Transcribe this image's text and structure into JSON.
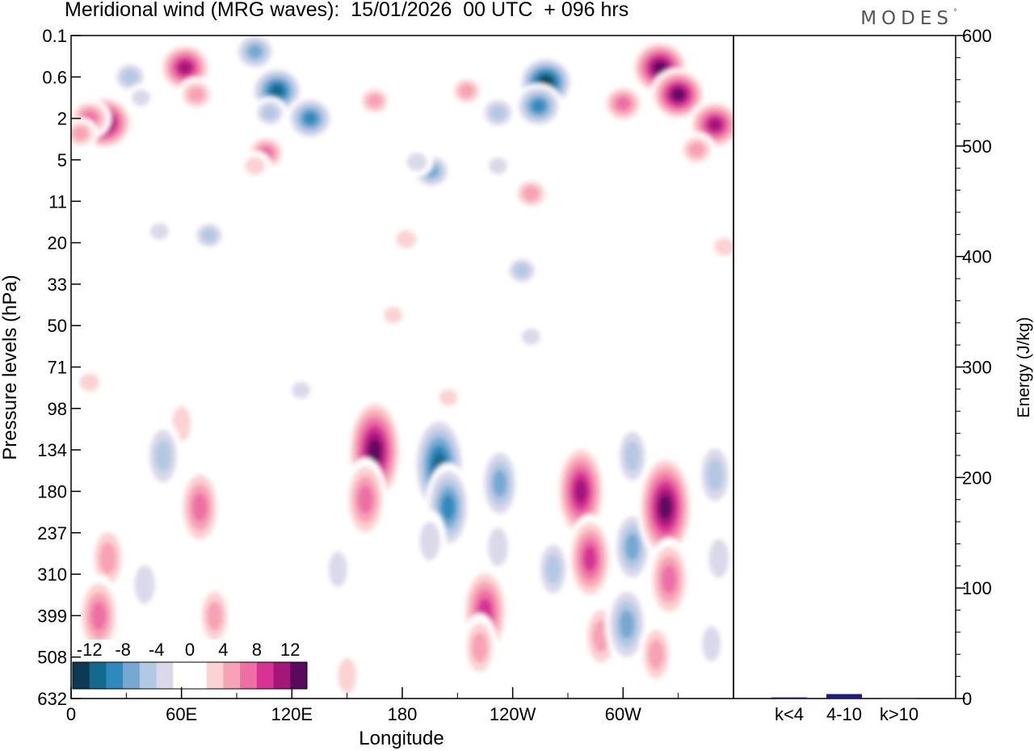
{
  "header": {
    "title": "Meridional wind (MRG waves):  15/01/2026  00 UTC  + 096 hrs",
    "brand": "MODES",
    "brand_mark": "°"
  },
  "chart_data": [
    {
      "type": "heatmap",
      "title": "Meridional wind (MRG waves):  15/01/2026  00 UTC  + 096 hrs",
      "xlabel": "Longitude",
      "ylabel": "Pressure levels (hPa)",
      "x_ticks": [
        "0",
        "60E",
        "120E",
        "180",
        "120W",
        "60W"
      ],
      "x_tick_values": [
        0,
        60,
        120,
        180,
        240,
        300
      ],
      "x_range": [
        0,
        360
      ],
      "y_ticks": [
        "0.1",
        "0.6",
        "2",
        "5",
        "11",
        "20",
        "33",
        "50",
        "71",
        "98",
        "134",
        "180",
        "237",
        "310",
        "399",
        "508",
        "632"
      ],
      "colorbar": {
        "labels": [
          "-12",
          "-8",
          "-4",
          "0",
          "4",
          "8",
          "12"
        ],
        "colors": [
          "#0b3a52",
          "#126b8c",
          "#2e89bd",
          "#76a9d2",
          "#b3c9e3",
          "#dad9ea",
          "#ffffff",
          "#ffffff",
          "#fdd2d3",
          "#f7a2b6",
          "#ed6fa4",
          "#d63393",
          "#a3167a",
          "#5a0a5e"
        ]
      },
      "cells": [
        {
          "lon": 18,
          "level": 2.2,
          "value": 14
        },
        {
          "lon": 10,
          "level": 2.0,
          "value": 8
        },
        {
          "lon": 5,
          "level": 2.8,
          "value": 5
        },
        {
          "lon": 32,
          "level": 0.6,
          "value": -6
        },
        {
          "lon": 38,
          "level": 1.1,
          "value": -3
        },
        {
          "lon": 62,
          "level": 0.4,
          "value": 12
        },
        {
          "lon": 68,
          "level": 1.0,
          "value": 6
        },
        {
          "lon": 100,
          "level": 0.2,
          "value": -8
        },
        {
          "lon": 112,
          "level": 0.9,
          "value": -12
        },
        {
          "lon": 130,
          "level": 2.0,
          "value": -10
        },
        {
          "lon": 108,
          "level": 1.7,
          "value": -5
        },
        {
          "lon": 165,
          "level": 1.2,
          "value": 5
        },
        {
          "lon": 106,
          "level": 4.3,
          "value": 7
        },
        {
          "lon": 100,
          "level": 5.6,
          "value": 4
        },
        {
          "lon": 215,
          "level": 0.9,
          "value": 5
        },
        {
          "lon": 196,
          "level": 6.2,
          "value": -7
        },
        {
          "lon": 188,
          "level": 5.2,
          "value": -4
        },
        {
          "lon": 258,
          "level": 0.7,
          "value": -13
        },
        {
          "lon": 254,
          "level": 1.4,
          "value": -10
        },
        {
          "lon": 232,
          "level": 1.7,
          "value": -6
        },
        {
          "lon": 250,
          "level": 9.5,
          "value": 6
        },
        {
          "lon": 232,
          "level": 5.6,
          "value": -3
        },
        {
          "lon": 320,
          "level": 0.4,
          "value": 14
        },
        {
          "lon": 330,
          "level": 1.0,
          "value": 13
        },
        {
          "lon": 300,
          "level": 1.3,
          "value": 8
        },
        {
          "lon": 350,
          "level": 2.3,
          "value": 12
        },
        {
          "lon": 340,
          "level": 4.0,
          "value": 6
        },
        {
          "lon": 75,
          "level": 18,
          "value": -5
        },
        {
          "lon": 48,
          "level": 17,
          "value": -3
        },
        {
          "lon": 182,
          "level": 19,
          "value": 4
        },
        {
          "lon": 245,
          "level": 28,
          "value": -5
        },
        {
          "lon": 355,
          "level": 21,
          "value": 4
        },
        {
          "lon": 175,
          "level": 45,
          "value": 3
        },
        {
          "lon": 250,
          "level": 55,
          "value": -3
        },
        {
          "lon": 300,
          "level": 55,
          "value": 2
        },
        {
          "lon": 10,
          "level": 80,
          "value": 4
        },
        {
          "lon": 125,
          "level": 85,
          "value": -3
        },
        {
          "lon": 205,
          "level": 90,
          "value": 3
        },
        {
          "lon": 60,
          "level": 110,
          "value": 3
        },
        {
          "lon": 70,
          "level": 200,
          "value": 8
        },
        {
          "lon": 78,
          "level": 400,
          "value": 5
        },
        {
          "lon": 20,
          "level": 280,
          "value": 6
        },
        {
          "lon": 15,
          "level": 400,
          "value": 8
        },
        {
          "lon": 50,
          "level": 140,
          "value": -6
        },
        {
          "lon": 40,
          "level": 330,
          "value": -4
        },
        {
          "lon": 165,
          "level": 135,
          "value": 13
        },
        {
          "lon": 160,
          "level": 190,
          "value": 8
        },
        {
          "lon": 200,
          "level": 150,
          "value": -12
        },
        {
          "lon": 205,
          "level": 200,
          "value": -9
        },
        {
          "lon": 195,
          "level": 250,
          "value": -4
        },
        {
          "lon": 233,
          "level": 170,
          "value": -7
        },
        {
          "lon": 232,
          "level": 260,
          "value": -4
        },
        {
          "lon": 225,
          "level": 390,
          "value": 10
        },
        {
          "lon": 222,
          "level": 480,
          "value": 5
        },
        {
          "lon": 262,
          "level": 300,
          "value": -5
        },
        {
          "lon": 277,
          "level": 180,
          "value": 11
        },
        {
          "lon": 282,
          "level": 280,
          "value": 9
        },
        {
          "lon": 288,
          "level": 450,
          "value": 6
        },
        {
          "lon": 305,
          "level": 140,
          "value": -5
        },
        {
          "lon": 305,
          "level": 260,
          "value": -7
        },
        {
          "lon": 302,
          "level": 420,
          "value": -8
        },
        {
          "lon": 323,
          "level": 200,
          "value": 13
        },
        {
          "lon": 325,
          "level": 320,
          "value": 8
        },
        {
          "lon": 318,
          "level": 500,
          "value": 5
        },
        {
          "lon": 350,
          "level": 160,
          "value": -6
        },
        {
          "lon": 352,
          "level": 280,
          "value": -4
        },
        {
          "lon": 348,
          "level": 470,
          "value": -3
        },
        {
          "lon": 145,
          "level": 300,
          "value": -3
        },
        {
          "lon": 150,
          "level": 560,
          "value": 3
        },
        {
          "lon": 110,
          "level": 420,
          "value": -2
        },
        {
          "lon": 270,
          "level": 560,
          "value": -2
        }
      ]
    },
    {
      "type": "bar",
      "ylabel": "Energy (J/kg)",
      "categories": [
        "k<4",
        "4-10",
        "k>10"
      ],
      "values": [
        1,
        4,
        0
      ],
      "ylim": [
        0,
        600
      ],
      "y_ticks": [
        "0",
        "100",
        "200",
        "300",
        "400",
        "500",
        "600"
      ],
      "bar_color": "#1c1c7a"
    }
  ]
}
